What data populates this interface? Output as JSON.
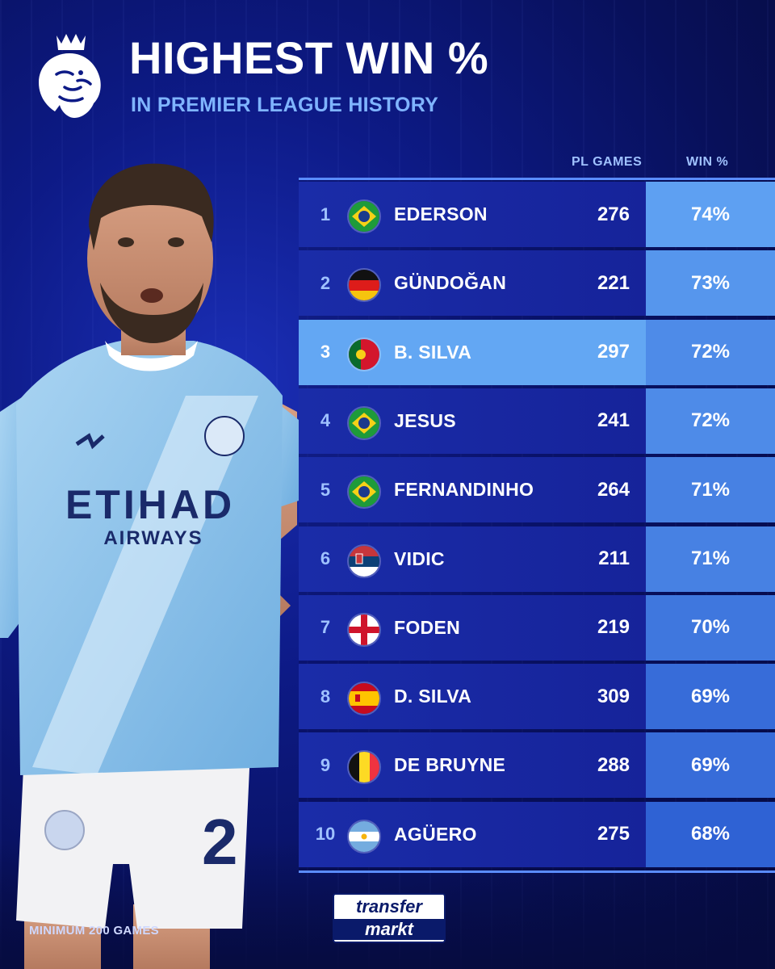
{
  "header": {
    "title": "HIGHEST WIN %",
    "subtitle": "IN PREMIER LEAGUE HISTORY"
  },
  "table_headers": {
    "games": "PL GAMES",
    "win": "WIN %"
  },
  "footnote": "MINIMUM 200 GAMES",
  "sponsor": {
    "line1": "transfer",
    "line2": "markt"
  },
  "jersey": {
    "sponsor_top": "ETIHAD",
    "sponsor_bottom": "AIRWAYS",
    "number": "2"
  },
  "colors": {
    "background": "#0d1a86",
    "row": "#1a2ca8",
    "highlight_row": "#63a7f3",
    "accent_text": "#7fb4ff",
    "win_scale": [
      "#5ea0f2",
      "#2f62d4"
    ]
  },
  "chart_data": {
    "type": "table",
    "title": "HIGHEST WIN %",
    "subtitle": "IN PREMIER LEAGUE HISTORY",
    "columns": [
      "",
      "",
      "PL GAMES",
      "WIN %"
    ],
    "highlight_rank": 3,
    "rows": [
      {
        "rank": "1",
        "flag": "brazil",
        "name": "EDERSON",
        "games": "276",
        "win": "74%",
        "win_value": 74
      },
      {
        "rank": "2",
        "flag": "germany",
        "name": "GÜNDOĞAN",
        "games": "221",
        "win": "73%",
        "win_value": 73
      },
      {
        "rank": "3",
        "flag": "portugal",
        "name": "B. SILVA",
        "games": "297",
        "win": "72%",
        "win_value": 72
      },
      {
        "rank": "4",
        "flag": "brazil",
        "name": "JESUS",
        "games": "241",
        "win": "72%",
        "win_value": 72
      },
      {
        "rank": "5",
        "flag": "brazil",
        "name": "FERNANDINHO",
        "games": "264",
        "win": "71%",
        "win_value": 71
      },
      {
        "rank": "6",
        "flag": "serbia",
        "name": "VIDIC",
        "games": "211",
        "win": "71%",
        "win_value": 71
      },
      {
        "rank": "7",
        "flag": "england",
        "name": "FODEN",
        "games": "219",
        "win": "70%",
        "win_value": 70
      },
      {
        "rank": "8",
        "flag": "spain",
        "name": "D. SILVA",
        "games": "309",
        "win": "69%",
        "win_value": 69
      },
      {
        "rank": "9",
        "flag": "belgium",
        "name": "DE BRUYNE",
        "games": "288",
        "win": "69%",
        "win_value": 69
      },
      {
        "rank": "10",
        "flag": "argentina",
        "name": "AGÜERO",
        "games": "275",
        "win": "68%",
        "win_value": 68
      }
    ]
  }
}
